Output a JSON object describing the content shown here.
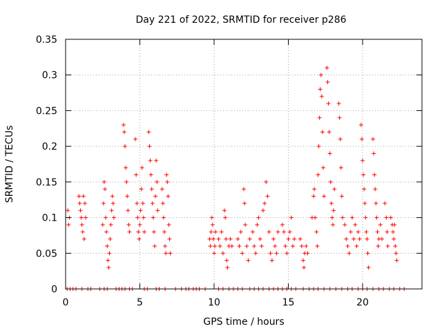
{
  "chart_data": {
    "type": "scatter",
    "title": "Day 221 of 2022, SRMTID for receiver p286",
    "xlabel": "GPS time / hours",
    "ylabel": "SRMTID / TECUs",
    "xlim": [
      0,
      24
    ],
    "ylim": [
      0,
      0.35
    ],
    "xticks": [
      0,
      5,
      10,
      15,
      20
    ],
    "yticks": [
      0,
      0.05,
      0.1,
      0.15,
      0.2,
      0.25,
      0.3,
      0.35
    ],
    "xtick_labels": [
      "0",
      "5",
      "10",
      "15",
      "20"
    ],
    "ytick_labels": [
      "0",
      "0.05",
      "0.1",
      "0.15",
      "0.2",
      "0.25",
      "0.3",
      "0.35"
    ],
    "grid": true,
    "marker": "+",
    "color": "#ff0000",
    "series": [
      {
        "name": "SRMTID",
        "points": [
          [
            0.15,
            0.11
          ],
          [
            0.2,
            0.09
          ],
          [
            0.25,
            0.1
          ],
          [
            0.9,
            0.13
          ],
          [
            0.95,
            0.12
          ],
          [
            1.0,
            0.11
          ],
          [
            1.05,
            0.1
          ],
          [
            1.1,
            0.09
          ],
          [
            1.15,
            0.08
          ],
          [
            1.2,
            0.13
          ],
          [
            1.25,
            0.07
          ],
          [
            1.3,
            0.12
          ],
          [
            1.35,
            0.1
          ],
          [
            2.5,
            0.09
          ],
          [
            2.55,
            0.12
          ],
          [
            2.6,
            0.15
          ],
          [
            2.65,
            0.14
          ],
          [
            2.7,
            0.1
          ],
          [
            2.75,
            0.08
          ],
          [
            2.8,
            0.06
          ],
          [
            2.85,
            0.04
          ],
          [
            2.9,
            0.03
          ],
          [
            2.95,
            0.05
          ],
          [
            3.0,
            0.07
          ],
          [
            3.05,
            0.09
          ],
          [
            3.1,
            0.11
          ],
          [
            3.15,
            0.13
          ],
          [
            3.2,
            0.12
          ],
          [
            3.25,
            0.1
          ],
          [
            3.9,
            0.23
          ],
          [
            3.95,
            0.22
          ],
          [
            4.0,
            0.2
          ],
          [
            4.05,
            0.17
          ],
          [
            4.1,
            0.15
          ],
          [
            4.15,
            0.13
          ],
          [
            4.2,
            0.11
          ],
          [
            4.25,
            0.09
          ],
          [
            4.3,
            0.08
          ],
          [
            4.7,
            0.21
          ],
          [
            4.75,
            0.16
          ],
          [
            4.8,
            0.12
          ],
          [
            4.85,
            0.1
          ],
          [
            4.9,
            0.08
          ],
          [
            4.95,
            0.07
          ],
          [
            5.0,
            0.09
          ],
          [
            5.05,
            0.11
          ],
          [
            5.1,
            0.14
          ],
          [
            5.15,
            0.17
          ],
          [
            5.2,
            0.12
          ],
          [
            5.25,
            0.1
          ],
          [
            5.3,
            0.08
          ],
          [
            5.6,
            0.22
          ],
          [
            5.65,
            0.2
          ],
          [
            5.7,
            0.18
          ],
          [
            5.75,
            0.16
          ],
          [
            5.8,
            0.14
          ],
          [
            5.85,
            0.12
          ],
          [
            5.9,
            0.1
          ],
          [
            5.95,
            0.08
          ],
          [
            6.0,
            0.06
          ],
          [
            6.05,
            0.13
          ],
          [
            6.1,
            0.18
          ],
          [
            6.15,
            0.15
          ],
          [
            6.2,
            0.11
          ],
          [
            6.5,
            0.14
          ],
          [
            6.55,
            0.12
          ],
          [
            6.6,
            0.1
          ],
          [
            6.65,
            0.08
          ],
          [
            6.7,
            0.06
          ],
          [
            6.75,
            0.05
          ],
          [
            6.8,
            0.16
          ],
          [
            6.85,
            0.15
          ],
          [
            6.9,
            0.13
          ],
          [
            6.95,
            0.09
          ],
          [
            7.0,
            0.07
          ],
          [
            7.05,
            0.05
          ],
          [
            9.7,
            0.07
          ],
          [
            9.75,
            0.06
          ],
          [
            9.8,
            0.08
          ],
          [
            9.85,
            0.1
          ],
          [
            9.9,
            0.09
          ],
          [
            9.95,
            0.07
          ],
          [
            10.0,
            0.05
          ],
          [
            10.05,
            0.06
          ],
          [
            10.1,
            0.08
          ],
          [
            10.3,
            0.07
          ],
          [
            10.4,
            0.06
          ],
          [
            10.5,
            0.08
          ],
          [
            10.6,
            0.05
          ],
          [
            10.7,
            0.11
          ],
          [
            10.75,
            0.1
          ],
          [
            10.8,
            0.07
          ],
          [
            10.85,
            0.04
          ],
          [
            10.9,
            0.03
          ],
          [
            11.0,
            0.06
          ],
          [
            11.1,
            0.07
          ],
          [
            11.2,
            0.06
          ],
          [
            11.6,
            0.07
          ],
          [
            11.7,
            0.06
          ],
          [
            11.8,
            0.08
          ],
          [
            11.9,
            0.05
          ],
          [
            12.0,
            0.14
          ],
          [
            12.05,
            0.12
          ],
          [
            12.1,
            0.09
          ],
          [
            12.2,
            0.06
          ],
          [
            12.3,
            0.04
          ],
          [
            12.4,
            0.07
          ],
          [
            12.6,
            0.08
          ],
          [
            12.7,
            0.06
          ],
          [
            12.8,
            0.05
          ],
          [
            12.9,
            0.09
          ],
          [
            13.0,
            0.1
          ],
          [
            13.1,
            0.07
          ],
          [
            13.2,
            0.06
          ],
          [
            13.3,
            0.11
          ],
          [
            13.4,
            0.12
          ],
          [
            13.5,
            0.15
          ],
          [
            13.6,
            0.13
          ],
          [
            13.7,
            0.08
          ],
          [
            13.8,
            0.05
          ],
          [
            13.9,
            0.04
          ],
          [
            14.0,
            0.07
          ],
          [
            14.1,
            0.06
          ],
          [
            14.2,
            0.05
          ],
          [
            14.3,
            0.08
          ],
          [
            14.6,
            0.09
          ],
          [
            14.7,
            0.08
          ],
          [
            14.8,
            0.06
          ],
          [
            14.9,
            0.05
          ],
          [
            15.0,
            0.07
          ],
          [
            15.1,
            0.08
          ],
          [
            15.2,
            0.1
          ],
          [
            15.3,
            0.06
          ],
          [
            15.4,
            0.07
          ],
          [
            15.8,
            0.07
          ],
          [
            15.9,
            0.06
          ],
          [
            16.0,
            0.04
          ],
          [
            16.05,
            0.03
          ],
          [
            16.1,
            0.05
          ],
          [
            16.2,
            0.06
          ],
          [
            16.3,
            0.05
          ],
          [
            16.6,
            0.1
          ],
          [
            16.7,
            0.13
          ],
          [
            16.75,
            0.14
          ],
          [
            16.8,
            0.1
          ],
          [
            16.9,
            0.08
          ],
          [
            16.95,
            0.06
          ],
          [
            17.0,
            0.16
          ],
          [
            17.05,
            0.2
          ],
          [
            17.1,
            0.24
          ],
          [
            17.15,
            0.28
          ],
          [
            17.2,
            0.3
          ],
          [
            17.25,
            0.27
          ],
          [
            17.3,
            0.22
          ],
          [
            17.35,
            0.17
          ],
          [
            17.4,
            0.13
          ],
          [
            17.6,
            0.31
          ],
          [
            17.65,
            0.29
          ],
          [
            17.7,
            0.26
          ],
          [
            17.75,
            0.22
          ],
          [
            17.8,
            0.19
          ],
          [
            17.85,
            0.15
          ],
          [
            17.9,
            0.12
          ],
          [
            17.95,
            0.1
          ],
          [
            18.0,
            0.09
          ],
          [
            18.05,
            0.11
          ],
          [
            18.1,
            0.14
          ],
          [
            18.4,
            0.26
          ],
          [
            18.45,
            0.24
          ],
          [
            18.5,
            0.21
          ],
          [
            18.55,
            0.17
          ],
          [
            18.6,
            0.13
          ],
          [
            18.65,
            0.1
          ],
          [
            18.8,
            0.09
          ],
          [
            18.9,
            0.07
          ],
          [
            19.0,
            0.06
          ],
          [
            19.1,
            0.05
          ],
          [
            19.2,
            0.08
          ],
          [
            19.3,
            0.1
          ],
          [
            19.4,
            0.07
          ],
          [
            19.5,
            0.09
          ],
          [
            19.6,
            0.06
          ],
          [
            19.7,
            0.08
          ],
          [
            19.8,
            0.07
          ],
          [
            19.9,
            0.23
          ],
          [
            19.95,
            0.21
          ],
          [
            20.0,
            0.18
          ],
          [
            20.05,
            0.16
          ],
          [
            20.1,
            0.14
          ],
          [
            20.15,
            0.12
          ],
          [
            20.2,
            0.1
          ],
          [
            20.25,
            0.08
          ],
          [
            20.3,
            0.07
          ],
          [
            20.35,
            0.05
          ],
          [
            20.4,
            0.03
          ],
          [
            20.7,
            0.21
          ],
          [
            20.75,
            0.19
          ],
          [
            20.8,
            0.16
          ],
          [
            20.85,
            0.14
          ],
          [
            20.9,
            0.12
          ],
          [
            20.95,
            0.1
          ],
          [
            21.0,
            0.08
          ],
          [
            21.05,
            0.06
          ],
          [
            21.1,
            0.07
          ],
          [
            21.2,
            0.09
          ],
          [
            21.3,
            0.07
          ],
          [
            21.5,
            0.12
          ],
          [
            21.6,
            0.1
          ],
          [
            21.65,
            0.08
          ],
          [
            21.7,
            0.06
          ],
          [
            21.9,
            0.1
          ],
          [
            22.0,
            0.09
          ],
          [
            22.05,
            0.08
          ],
          [
            22.1,
            0.07
          ],
          [
            22.15,
            0.09
          ],
          [
            22.2,
            0.06
          ],
          [
            22.25,
            0.05
          ],
          [
            22.3,
            0.04
          ]
        ],
        "zero_times": [
          0.1,
          0.3,
          0.5,
          0.7,
          1.1,
          1.5,
          1.7,
          2.3,
          2.6,
          2.8,
          3.4,
          3.6,
          3.8,
          4.0,
          4.3,
          4.5,
          5.3,
          5.5,
          6.1,
          6.3,
          6.7,
          7.4,
          7.8,
          8.1,
          8.3,
          8.6,
          8.8,
          9.0,
          9.4,
          10.3,
          10.6,
          11.0,
          11.3,
          11.6,
          11.9,
          12.4,
          12.7,
          13.0,
          13.3,
          13.7,
          14.0,
          14.3,
          14.6,
          14.9,
          15.2,
          15.5,
          16.0,
          16.4,
          16.7,
          17.0,
          17.4,
          17.8,
          18.2,
          18.6,
          19.0,
          19.3,
          19.7,
          20.0,
          20.3,
          20.7,
          21.1,
          21.4,
          21.8,
          22.1,
          22.5,
          22.8
        ]
      }
    ]
  }
}
